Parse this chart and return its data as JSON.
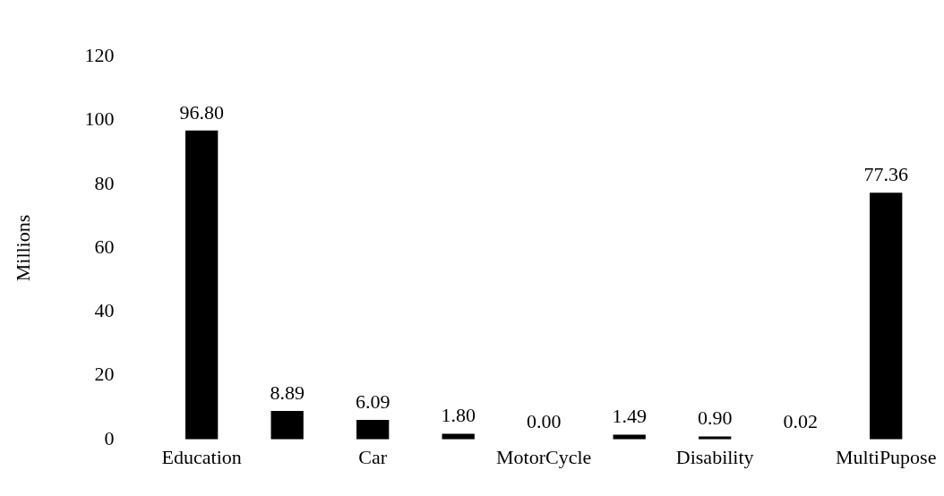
{
  "chart_data": {
    "type": "bar",
    "ylabel": "Millions",
    "categories": [
      "Education",
      null,
      "Car",
      null,
      "MotorCycle",
      null,
      "Disability",
      null,
      "MultiPupose"
    ],
    "values": [
      96.8,
      8.89,
      6.09,
      1.8,
      0,
      1.49,
      0.9,
      0.02,
      77.36
    ],
    "value_labels": [
      "96.80",
      "8.89",
      "6.09",
      "1.80",
      "0.00",
      "1.49",
      "0.90",
      "0.02",
      "77.36"
    ],
    "color": "#000000",
    "ylim": [
      0,
      120
    ],
    "yticks": [
      0,
      20,
      40,
      60,
      80,
      100,
      120
    ],
    "grid": false,
    "legend": false
  }
}
